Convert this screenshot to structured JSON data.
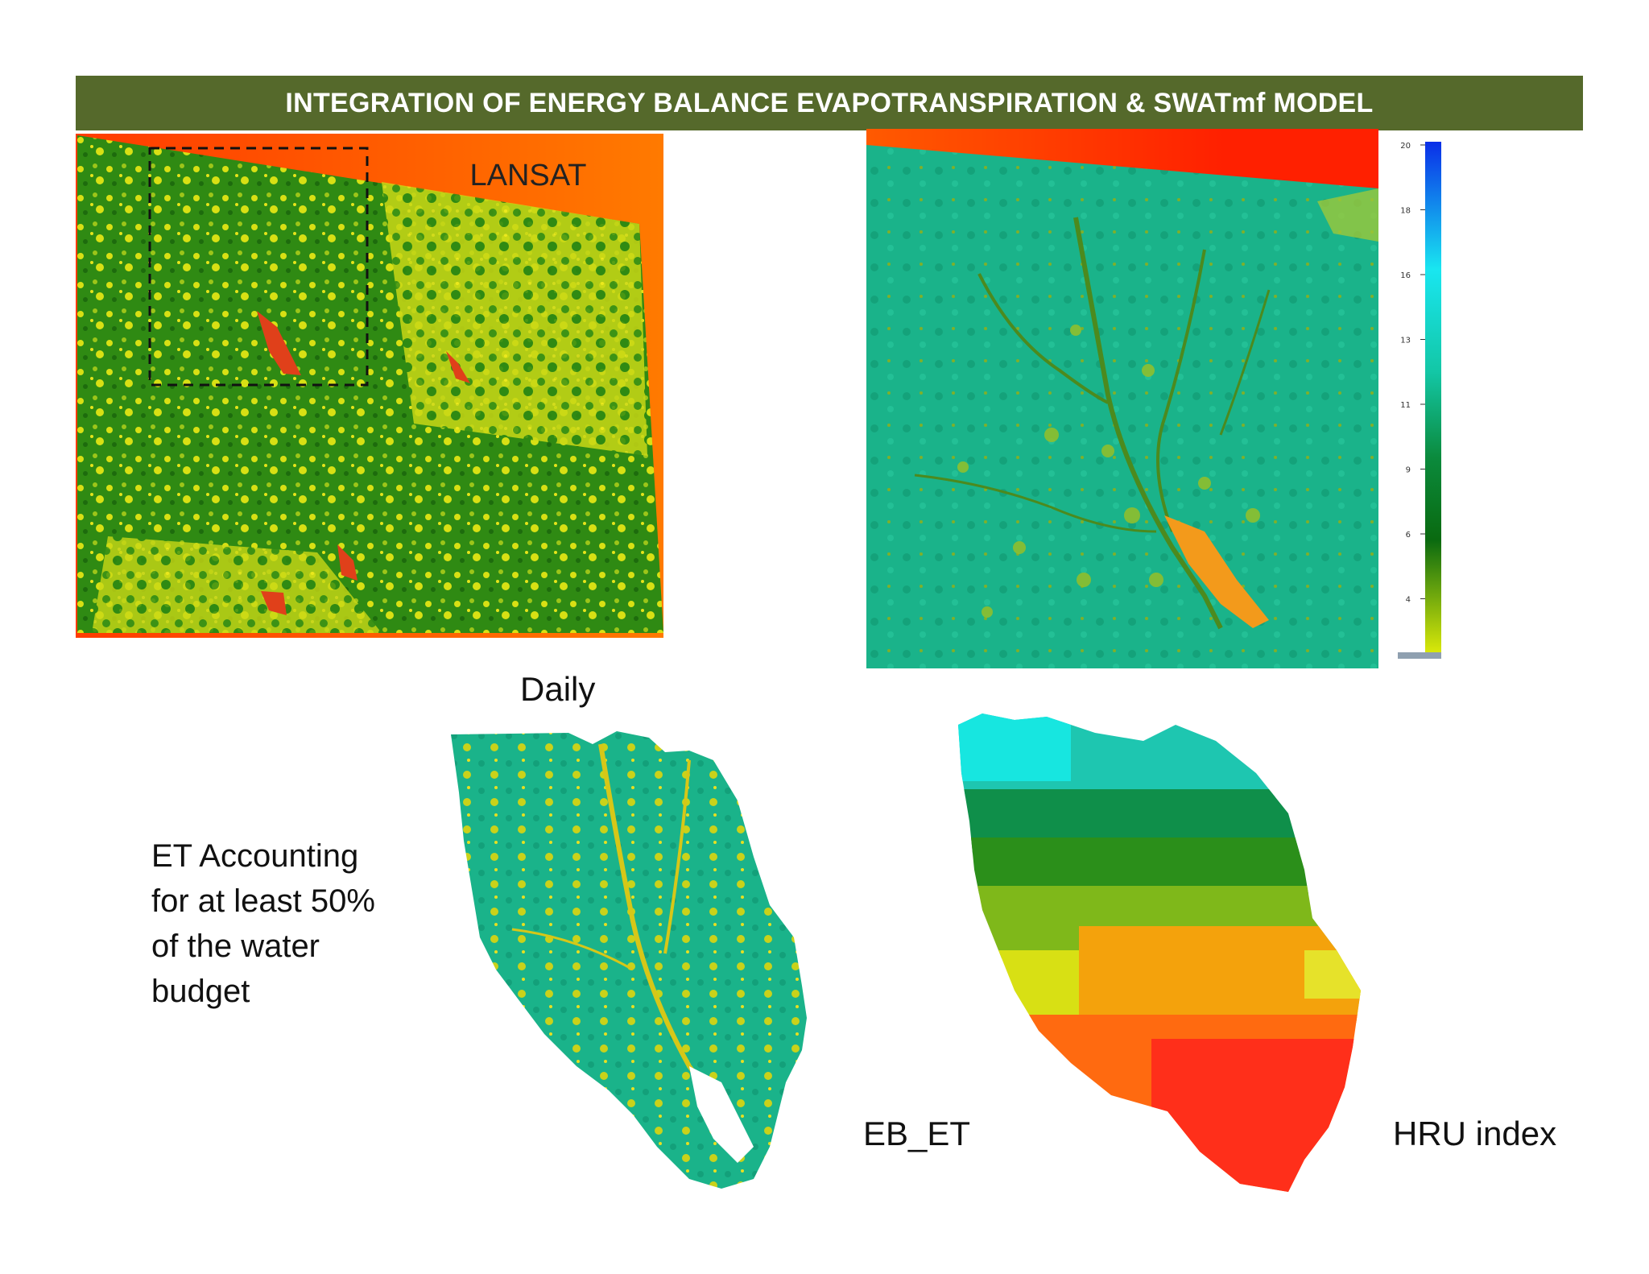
{
  "banner": {
    "title": "INTEGRATION OF ENERGY BALANCE EVAPOTRANSPIRATION & SWATmf MODEL"
  },
  "landsat_panel": {
    "label": "LANSAT"
  },
  "daily_panel": {
    "caption": "Daily"
  },
  "colorbar": {
    "ticks": [
      "20",
      "18",
      "16",
      "13",
      "11",
      "9",
      "6",
      "4"
    ],
    "colors": [
      "#0a2ee8",
      "#19e6f0",
      "#13c7a6",
      "#0b8a3c",
      "#0a6a10",
      "#d9e80a"
    ]
  },
  "et_note": {
    "lines": [
      "ET Accounting",
      "for at least 50%",
      "of the water",
      "budget"
    ]
  },
  "eb_et_panel": {
    "caption": "EB_ET"
  },
  "hru_panel": {
    "caption": "HRU index"
  },
  "colors": {
    "banner": "#55692b",
    "landsat_green": "#2f8a13",
    "landsat_yellow": "#d8e014",
    "landsat_border": "#ff4c00",
    "et_teal": "#1ab38a",
    "reservoir": "#f39a1b"
  }
}
